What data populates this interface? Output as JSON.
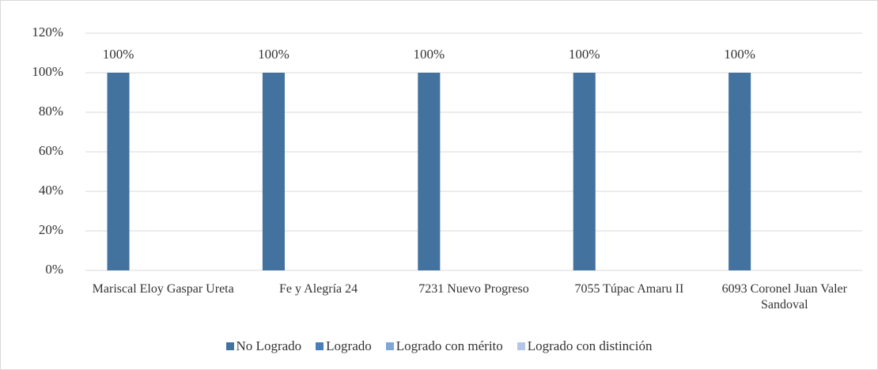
{
  "chart_data": {
    "type": "bar",
    "categories": [
      "Mariscal Eloy Gaspar Ureta",
      "Fe y Alegría 24",
      "7231 Nuevo Progreso",
      "7055 Túpac Amaru II",
      "6093 Coronel Juan Valer Sandoval"
    ],
    "series": [
      {
        "name": "No Logrado",
        "color": "#44729f",
        "values": [
          100,
          100,
          100,
          100,
          100
        ],
        "value_labels": [
          "100%",
          "100%",
          "100%",
          "100%",
          "100%"
        ]
      },
      {
        "name": "Logrado",
        "color": "#4a7ebb",
        "values": [
          0,
          0,
          0,
          0,
          0
        ]
      },
      {
        "name": "Logrado con mérito",
        "color": "#7ea6d6",
        "values": [
          0,
          0,
          0,
          0,
          0
        ]
      },
      {
        "name": "Logrado con distinción",
        "color": "#b4c7e7",
        "values": [
          0,
          0,
          0,
          0,
          0
        ]
      }
    ],
    "ylim": [
      0,
      120
    ],
    "yticks": [
      {
        "value": 0,
        "label": "0%"
      },
      {
        "value": 20,
        "label": "20%"
      },
      {
        "value": 40,
        "label": "40%"
      },
      {
        "value": 60,
        "label": "60%"
      },
      {
        "value": 80,
        "label": "80%"
      },
      {
        "value": 100,
        "label": "100%"
      },
      {
        "value": 120,
        "label": "120%"
      }
    ],
    "grid": true,
    "legend": "bottom"
  }
}
